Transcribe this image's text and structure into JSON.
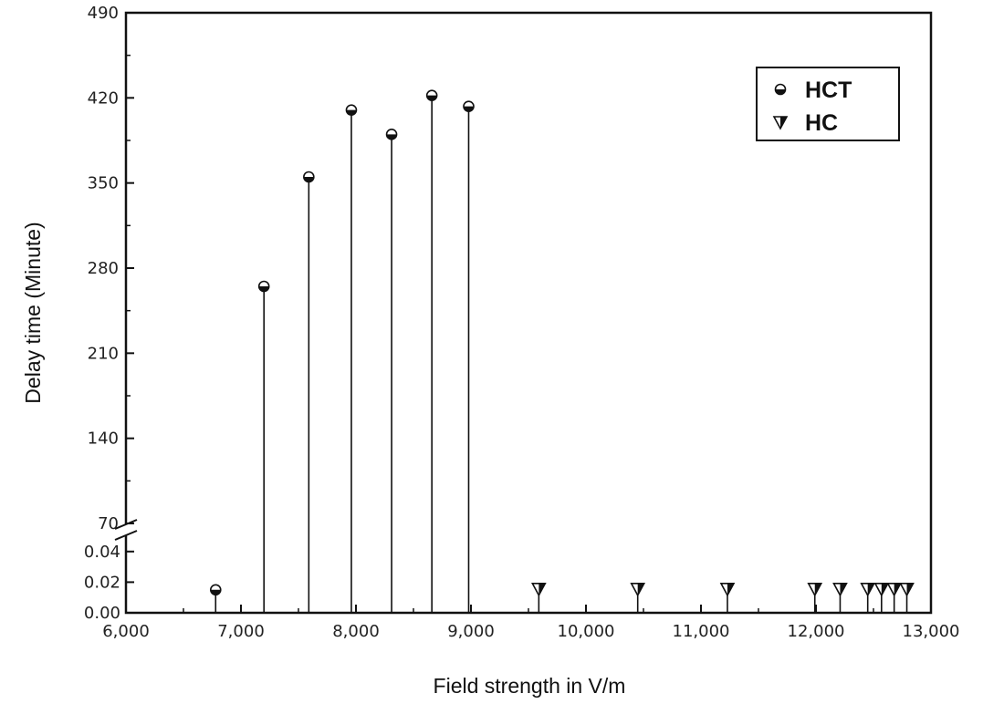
{
  "chart_data": {
    "type": "scatter",
    "title": "",
    "xlabel": "Field strength in V/m",
    "ylabel": "Delay time (Minute)",
    "xlim": [
      6000,
      13000
    ],
    "x_ticks": [
      6000,
      7000,
      8000,
      9000,
      10000,
      11000,
      12000,
      13000
    ],
    "x_tick_labels": [
      "6,000",
      "7,000",
      "8,000",
      "9,000",
      "10,000",
      "11,000",
      "12,000",
      "13,000"
    ],
    "y_axis_break": true,
    "y_lower_range": [
      0,
      0.05
    ],
    "y_upper_range": [
      70,
      490
    ],
    "y_ticks_lower": [
      0.0,
      0.02,
      0.04
    ],
    "y_tick_labels_lower": [
      "0.00",
      "0.02",
      "0.04"
    ],
    "y_ticks_upper": [
      70,
      140,
      210,
      280,
      350,
      420,
      490
    ],
    "y_tick_labels_upper": [
      "70",
      "140",
      "210",
      "280",
      "350",
      "420",
      "490"
    ],
    "grid": false,
    "legend_position": "top-right",
    "drop_lines": true,
    "series": [
      {
        "name": "HCT",
        "marker": "half-filled-circle",
        "color": "#111111",
        "x": [
          6780,
          7200,
          7590,
          7960,
          8310,
          8660,
          8980
        ],
        "y": [
          0.015,
          265,
          355,
          410,
          390,
          422,
          413
        ]
      },
      {
        "name": "HC",
        "marker": "half-filled-down-triangle",
        "color": "#111111",
        "x": [
          9590,
          10450,
          11230,
          11990,
          12210,
          12450,
          12570,
          12680,
          12790
        ],
        "y": [
          0.015,
          0.015,
          0.015,
          0.015,
          0.015,
          0.015,
          0.015,
          0.015,
          0.015
        ]
      }
    ]
  }
}
